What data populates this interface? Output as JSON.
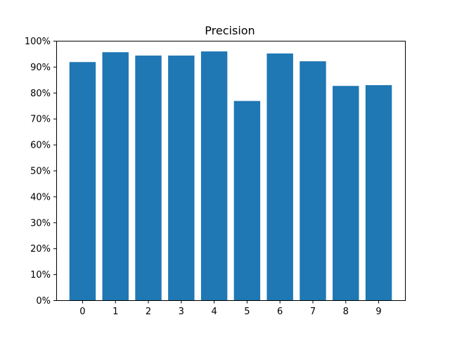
{
  "chart_data": {
    "type": "bar",
    "title": "Precision",
    "xlabel": "",
    "ylabel": "",
    "categories": [
      "0",
      "1",
      "2",
      "3",
      "4",
      "5",
      "6",
      "7",
      "8",
      "9"
    ],
    "values": [
      91.8,
      95.6,
      94.3,
      94.3,
      95.9,
      76.8,
      95.1,
      92.1,
      82.6,
      82.9
    ],
    "ylim": [
      0,
      100
    ],
    "yticks": [
      0,
      10,
      20,
      30,
      40,
      50,
      60,
      70,
      80,
      90,
      100
    ],
    "ytick_labels": [
      "0%",
      "10%",
      "20%",
      "30%",
      "40%",
      "50%",
      "60%",
      "70%",
      "80%",
      "90%",
      "100%"
    ],
    "bar_color": "#1f77b4",
    "grid": false,
    "legend": "none"
  }
}
